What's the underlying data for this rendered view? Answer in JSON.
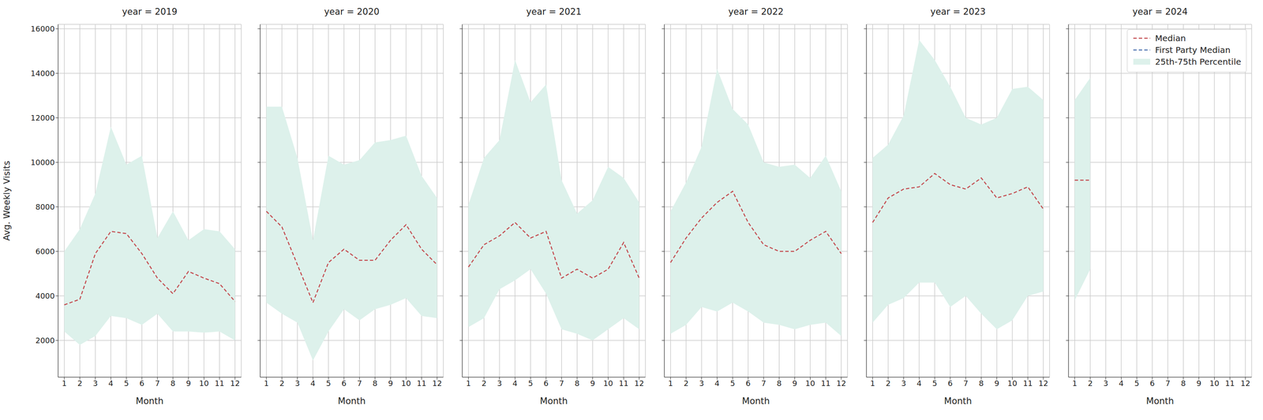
{
  "chart_data": [
    {
      "type": "line",
      "title": "year = 2019",
      "x_label": "Month",
      "y_label": "Avg. Weekly Visits",
      "x": [
        1,
        2,
        3,
        4,
        5,
        6,
        7,
        8,
        9,
        10,
        11,
        12
      ],
      "xlim": [
        0.6,
        12.4
      ],
      "xticks": [
        1,
        2,
        3,
        4,
        5,
        6,
        7,
        8,
        9,
        10,
        11,
        12
      ],
      "ylim": [
        350,
        16200
      ],
      "yticks": [
        2000,
        4000,
        6000,
        8000,
        10000,
        12000,
        14000,
        16000
      ],
      "grid": true,
      "series": [
        {
          "name": "Median",
          "type": "line",
          "line_style": "dashed",
          "color": "#c44e52",
          "values": [
            3600,
            3850,
            5900,
            6900,
            6800,
            5900,
            4800,
            4100,
            5100,
            4800,
            4550,
            3750
          ]
        },
        {
          "name": "First Party Median",
          "type": "line",
          "line_style": "dashed",
          "color": "#4c72b0",
          "values": [
            null,
            null,
            null,
            null,
            null,
            null,
            null,
            null,
            null,
            null,
            null,
            null
          ]
        },
        {
          "name": "25th-75th Percentile",
          "type": "area",
          "color": "#ddf1eb",
          "values": [
            [
              2400,
              6000
            ],
            [
              1800,
              7000
            ],
            [
              2200,
              8600
            ],
            [
              3100,
              11600
            ],
            [
              3000,
              9900
            ],
            [
              2700,
              10300
            ],
            [
              3200,
              6600
            ],
            [
              2400,
              7800
            ],
            [
              2400,
              6500
            ],
            [
              2350,
              7000
            ],
            [
              2400,
              6900
            ],
            [
              2000,
              6100
            ]
          ]
        }
      ]
    },
    {
      "type": "line",
      "title": "year = 2020",
      "x_label": "Month",
      "tick_labels": "x",
      "x": [
        1,
        2,
        3,
        4,
        5,
        6,
        7,
        8,
        9,
        10,
        11,
        12
      ],
      "xlim": [
        0.6,
        12.4
      ],
      "xticks": [
        1,
        2,
        3,
        4,
        5,
        6,
        7,
        8,
        9,
        10,
        11,
        12
      ],
      "ylim": [
        350,
        16200
      ],
      "yticks": [
        2000,
        4000,
        6000,
        8000,
        10000,
        12000,
        14000,
        16000
      ],
      "grid": true,
      "series": [
        {
          "name": "Median",
          "type": "line",
          "line_style": "dashed",
          "color": "#c44e52",
          "values": [
            7800,
            7100,
            5400,
            3700,
            5500,
            6100,
            5600,
            5600,
            6500,
            7200,
            6100,
            5400
          ]
        },
        {
          "name": "First Party Median",
          "type": "line",
          "line_style": "dashed",
          "color": "#4c72b0",
          "values": [
            null,
            null,
            null,
            null,
            null,
            null,
            null,
            null,
            null,
            null,
            null,
            null
          ]
        },
        {
          "name": "25th-75th Percentile",
          "type": "area",
          "color": "#ddf1eb",
          "values": [
            [
              3700,
              12500
            ],
            [
              3200,
              12500
            ],
            [
              2800,
              10200
            ],
            [
              1100,
              6500
            ],
            [
              2400,
              10300
            ],
            [
              3400,
              9900
            ],
            [
              2900,
              10100
            ],
            [
              3400,
              10900
            ],
            [
              3600,
              11000
            ],
            [
              3900,
              11200
            ],
            [
              3100,
              9400
            ],
            [
              3000,
              8400
            ]
          ]
        }
      ]
    },
    {
      "type": "line",
      "title": "year = 2021",
      "x_label": "Month",
      "tick_labels": "x",
      "x": [
        1,
        2,
        3,
        4,
        5,
        6,
        7,
        8,
        9,
        10,
        11,
        12
      ],
      "xlim": [
        0.6,
        12.4
      ],
      "xticks": [
        1,
        2,
        3,
        4,
        5,
        6,
        7,
        8,
        9,
        10,
        11,
        12
      ],
      "ylim": [
        350,
        16200
      ],
      "yticks": [
        2000,
        4000,
        6000,
        8000,
        10000,
        12000,
        14000,
        16000
      ],
      "grid": true,
      "series": [
        {
          "name": "Median",
          "type": "line",
          "line_style": "dashed",
          "color": "#c44e52",
          "values": [
            5300,
            6300,
            6700,
            7300,
            6600,
            6900,
            4800,
            5200,
            4800,
            5200,
            6400,
            4800
          ]
        },
        {
          "name": "First Party Median",
          "type": "line",
          "line_style": "dashed",
          "color": "#4c72b0",
          "values": [
            null,
            null,
            null,
            null,
            null,
            null,
            null,
            null,
            null,
            null,
            null,
            null
          ]
        },
        {
          "name": "25th-75th Percentile",
          "type": "area",
          "color": "#ddf1eb",
          "values": [
            [
              2600,
              8100
            ],
            [
              3000,
              10200
            ],
            [
              4300,
              11000
            ],
            [
              4700,
              14600
            ],
            [
              5200,
              12700
            ],
            [
              4100,
              13500
            ],
            [
              2500,
              9200
            ],
            [
              2300,
              7700
            ],
            [
              2000,
              8300
            ],
            [
              2500,
              9800
            ],
            [
              3000,
              9300
            ],
            [
              2500,
              8200
            ]
          ]
        }
      ]
    },
    {
      "type": "line",
      "title": "year = 2022",
      "x_label": "Month",
      "tick_labels": "x",
      "x": [
        1,
        2,
        3,
        4,
        5,
        6,
        7,
        8,
        9,
        10,
        11,
        12
      ],
      "xlim": [
        0.6,
        12.4
      ],
      "xticks": [
        1,
        2,
        3,
        4,
        5,
        6,
        7,
        8,
        9,
        10,
        11,
        12
      ],
      "ylim": [
        350,
        16200
      ],
      "yticks": [
        2000,
        4000,
        6000,
        8000,
        10000,
        12000,
        14000,
        16000
      ],
      "grid": true,
      "series": [
        {
          "name": "Median",
          "type": "line",
          "line_style": "dashed",
          "color": "#c44e52",
          "values": [
            5500,
            6600,
            7500,
            8200,
            8700,
            7300,
            6300,
            6000,
            6000,
            6500,
            6900,
            5900
          ]
        },
        {
          "name": "First Party Median",
          "type": "line",
          "line_style": "dashed",
          "color": "#4c72b0",
          "values": [
            null,
            null,
            null,
            null,
            null,
            null,
            null,
            null,
            null,
            null,
            null,
            null
          ]
        },
        {
          "name": "25th-75th Percentile",
          "type": "area",
          "color": "#ddf1eb",
          "values": [
            [
              2300,
              7800
            ],
            [
              2700,
              9100
            ],
            [
              3500,
              10700
            ],
            [
              3300,
              14200
            ],
            [
              3700,
              12400
            ],
            [
              3300,
              11700
            ],
            [
              2800,
              10000
            ],
            [
              2700,
              9800
            ],
            [
              2500,
              9900
            ],
            [
              2700,
              9300
            ],
            [
              2800,
              10300
            ],
            [
              2200,
              8700
            ]
          ]
        }
      ]
    },
    {
      "type": "line",
      "title": "year = 2023",
      "x_label": "Month",
      "tick_labels": "x",
      "x": [
        1,
        2,
        3,
        4,
        5,
        6,
        7,
        8,
        9,
        10,
        11,
        12
      ],
      "xlim": [
        0.6,
        12.4
      ],
      "xticks": [
        1,
        2,
        3,
        4,
        5,
        6,
        7,
        8,
        9,
        10,
        11,
        12
      ],
      "ylim": [
        350,
        16200
      ],
      "yticks": [
        2000,
        4000,
        6000,
        8000,
        10000,
        12000,
        14000,
        16000
      ],
      "grid": true,
      "series": [
        {
          "name": "Median",
          "type": "line",
          "line_style": "dashed",
          "color": "#c44e52",
          "values": [
            7300,
            8400,
            8800,
            8900,
            9500,
            9000,
            8800,
            9300,
            8400,
            8600,
            8900,
            7900
          ]
        },
        {
          "name": "First Party Median",
          "type": "line",
          "line_style": "dashed",
          "color": "#4c72b0",
          "values": [
            null,
            null,
            null,
            null,
            null,
            null,
            null,
            null,
            null,
            null,
            null,
            null
          ]
        },
        {
          "name": "25th-75th Percentile",
          "type": "area",
          "color": "#ddf1eb",
          "values": [
            [
              2800,
              10200
            ],
            [
              3600,
              10800
            ],
            [
              3900,
              12100
            ],
            [
              4600,
              15500
            ],
            [
              4600,
              14600
            ],
            [
              3500,
              13400
            ],
            [
              4000,
              12000
            ],
            [
              3200,
              11700
            ],
            [
              2500,
              12000
            ],
            [
              2900,
              13300
            ],
            [
              4000,
              13400
            ],
            [
              4200,
              12800
            ]
          ]
        }
      ]
    },
    {
      "type": "line",
      "title": "year = 2024",
      "x_label": "Month",
      "tick_labels": "x",
      "legend": "upper right",
      "x": [
        1,
        2,
        3,
        4,
        5,
        6,
        7,
        8,
        9,
        10,
        11,
        12
      ],
      "xlim": [
        0.6,
        12.4
      ],
      "xticks": [
        1,
        2,
        3,
        4,
        5,
        6,
        7,
        8,
        9,
        10,
        11,
        12
      ],
      "ylim": [
        350,
        16200
      ],
      "yticks": [
        2000,
        4000,
        6000,
        8000,
        10000,
        12000,
        14000,
        16000
      ],
      "grid": true,
      "series": [
        {
          "name": "Median",
          "type": "line",
          "line_style": "dashed",
          "color": "#c44e52",
          "values": [
            9200,
            9200,
            null,
            null,
            null,
            null,
            null,
            null,
            null,
            null,
            null,
            null
          ]
        },
        {
          "name": "First Party Median",
          "type": "line",
          "line_style": "dashed",
          "color": "#4c72b0",
          "values": [
            null,
            null,
            null,
            null,
            null,
            null,
            null,
            null,
            null,
            null,
            null,
            null
          ]
        },
        {
          "name": "25th-75th Percentile",
          "type": "area",
          "color": "#ddf1eb",
          "values": [
            [
              3800,
              12800
            ],
            [
              5200,
              13800
            ],
            null,
            null,
            null,
            null,
            null,
            null,
            null,
            null,
            null,
            null
          ]
        }
      ]
    }
  ]
}
